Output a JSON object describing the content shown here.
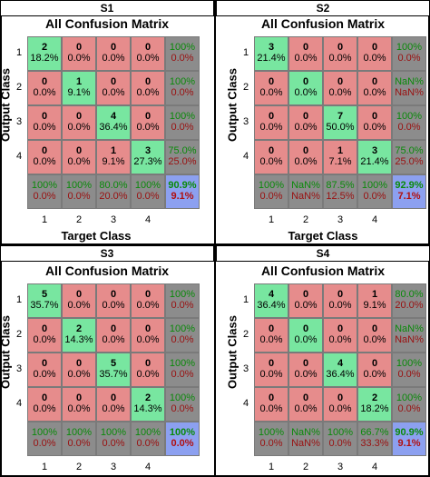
{
  "colors": {
    "diag": "#78e6a0",
    "off": "#e68c8c",
    "summary": "#8c8c8c",
    "total": "#8ca0f0"
  },
  "chart_data": [
    {
      "type": "table",
      "panel": "S1",
      "title": "All Confusion Matrix",
      "xlabel": "Target Class",
      "ylabel": "Output Class",
      "x_ticks": [
        "1",
        "2",
        "3",
        "4"
      ],
      "y_ticks": [
        "1",
        "2",
        "3",
        "4"
      ],
      "cells": [
        [
          {
            "c": "2",
            "p": "18.2%"
          },
          {
            "c": "0",
            "p": "0.0%"
          },
          {
            "c": "0",
            "p": "0.0%"
          },
          {
            "c": "0",
            "p": "0.0%"
          }
        ],
        [
          {
            "c": "0",
            "p": "0.0%"
          },
          {
            "c": "1",
            "p": "9.1%"
          },
          {
            "c": "0",
            "p": "0.0%"
          },
          {
            "c": "0",
            "p": "0.0%"
          }
        ],
        [
          {
            "c": "0",
            "p": "0.0%"
          },
          {
            "c": "0",
            "p": "0.0%"
          },
          {
            "c": "4",
            "p": "36.4%"
          },
          {
            "c": "0",
            "p": "0.0%"
          }
        ],
        [
          {
            "c": "0",
            "p": "0.0%"
          },
          {
            "c": "0",
            "p": "0.0%"
          },
          {
            "c": "1",
            "p": "9.1%"
          },
          {
            "c": "3",
            "p": "27.3%"
          }
        ]
      ],
      "row_summary": [
        [
          "100%",
          "0.0%"
        ],
        [
          "100%",
          "0.0%"
        ],
        [
          "100%",
          "0.0%"
        ],
        [
          "75.0%",
          "25.0%"
        ]
      ],
      "col_summary": [
        [
          "100%",
          "0.0%"
        ],
        [
          "100%",
          "0.0%"
        ],
        [
          "80.0%",
          "20.0%"
        ],
        [
          "100%",
          "0.0%"
        ]
      ],
      "total": [
        "90.9%",
        "9.1%"
      ]
    },
    {
      "type": "table",
      "panel": "S2",
      "title": "All Confusion Matrix",
      "xlabel": "Target Class",
      "ylabel": "Output Class",
      "x_ticks": [
        "1",
        "2",
        "3",
        "4"
      ],
      "y_ticks": [
        "1",
        "2",
        "3",
        "4"
      ],
      "cells": [
        [
          {
            "c": "3",
            "p": "21.4%"
          },
          {
            "c": "0",
            "p": "0.0%"
          },
          {
            "c": "0",
            "p": "0.0%"
          },
          {
            "c": "0",
            "p": "0.0%"
          }
        ],
        [
          {
            "c": "0",
            "p": "0.0%"
          },
          {
            "c": "0",
            "p": "0.0%"
          },
          {
            "c": "0",
            "p": "0.0%"
          },
          {
            "c": "0",
            "p": "0.0%"
          }
        ],
        [
          {
            "c": "0",
            "p": "0.0%"
          },
          {
            "c": "0",
            "p": "0.0%"
          },
          {
            "c": "7",
            "p": "50.0%"
          },
          {
            "c": "0",
            "p": "0.0%"
          }
        ],
        [
          {
            "c": "0",
            "p": "0.0%"
          },
          {
            "c": "0",
            "p": "0.0%"
          },
          {
            "c": "1",
            "p": "7.1%"
          },
          {
            "c": "3",
            "p": "21.4%"
          }
        ]
      ],
      "row_summary": [
        [
          "100%",
          "0.0%"
        ],
        [
          "NaN%",
          "NaN%"
        ],
        [
          "100%",
          "0.0%"
        ],
        [
          "75.0%",
          "25.0%"
        ]
      ],
      "col_summary": [
        [
          "100%",
          "0.0%"
        ],
        [
          "NaN%",
          "NaN%"
        ],
        [
          "87.5%",
          "12.5%"
        ],
        [
          "100%",
          "0.0%"
        ]
      ],
      "total": [
        "92.9%",
        "7.1%"
      ]
    },
    {
      "type": "table",
      "panel": "S3",
      "title": "All Confusion Matrix",
      "xlabel": "",
      "ylabel": "Output Class",
      "x_ticks": [
        "1",
        "2",
        "3",
        "4"
      ],
      "y_ticks": [
        "1",
        "2",
        "3",
        "4"
      ],
      "cells": [
        [
          {
            "c": "5",
            "p": "35.7%"
          },
          {
            "c": "0",
            "p": "0.0%"
          },
          {
            "c": "0",
            "p": "0.0%"
          },
          {
            "c": "0",
            "p": "0.0%"
          }
        ],
        [
          {
            "c": "0",
            "p": "0.0%"
          },
          {
            "c": "2",
            "p": "14.3%"
          },
          {
            "c": "0",
            "p": "0.0%"
          },
          {
            "c": "0",
            "p": "0.0%"
          }
        ],
        [
          {
            "c": "0",
            "p": "0.0%"
          },
          {
            "c": "0",
            "p": "0.0%"
          },
          {
            "c": "5",
            "p": "35.7%"
          },
          {
            "c": "0",
            "p": "0.0%"
          }
        ],
        [
          {
            "c": "0",
            "p": "0.0%"
          },
          {
            "c": "0",
            "p": "0.0%"
          },
          {
            "c": "0",
            "p": "0.0%"
          },
          {
            "c": "2",
            "p": "14.3%"
          }
        ]
      ],
      "row_summary": [
        [
          "100%",
          "0.0%"
        ],
        [
          "100%",
          "0.0%"
        ],
        [
          "100%",
          "0.0%"
        ],
        [
          "100%",
          "0.0%"
        ]
      ],
      "col_summary": [
        [
          "100%",
          "0.0%"
        ],
        [
          "100%",
          "0.0%"
        ],
        [
          "100%",
          "0.0%"
        ],
        [
          "100%",
          "0.0%"
        ]
      ],
      "total": [
        "100%",
        "0.0%"
      ]
    },
    {
      "type": "table",
      "panel": "S4",
      "title": "All Confusion Matrix",
      "xlabel": "",
      "ylabel": "Output Class",
      "x_ticks": [
        "1",
        "2",
        "3",
        "4"
      ],
      "y_ticks": [
        "1",
        "2",
        "3",
        "4"
      ],
      "cells": [
        [
          {
            "c": "4",
            "p": "36.4%"
          },
          {
            "c": "0",
            "p": "0.0%"
          },
          {
            "c": "0",
            "p": "0.0%"
          },
          {
            "c": "1",
            "p": "9.1%"
          }
        ],
        [
          {
            "c": "0",
            "p": "0.0%"
          },
          {
            "c": "0",
            "p": "0.0%"
          },
          {
            "c": "0",
            "p": "0.0%"
          },
          {
            "c": "0",
            "p": "0.0%"
          }
        ],
        [
          {
            "c": "0",
            "p": "0.0%"
          },
          {
            "c": "0",
            "p": "0.0%"
          },
          {
            "c": "4",
            "p": "36.4%"
          },
          {
            "c": "0",
            "p": "0.0%"
          }
        ],
        [
          {
            "c": "0",
            "p": "0.0%"
          },
          {
            "c": "0",
            "p": "0.0%"
          },
          {
            "c": "0",
            "p": "0.0%"
          },
          {
            "c": "2",
            "p": "18.2%"
          }
        ]
      ],
      "row_summary": [
        [
          "80.0%",
          "20.0%"
        ],
        [
          "NaN%",
          "NaN%"
        ],
        [
          "100%",
          "0.0%"
        ],
        [
          "100%",
          "0.0%"
        ]
      ],
      "col_summary": [
        [
          "100%",
          "0.0%"
        ],
        [
          "NaN%",
          "NaN%"
        ],
        [
          "100%",
          "0.0%"
        ],
        [
          "66.7%",
          "33.3%"
        ]
      ],
      "total": [
        "90.9%",
        "9.1%"
      ]
    }
  ]
}
